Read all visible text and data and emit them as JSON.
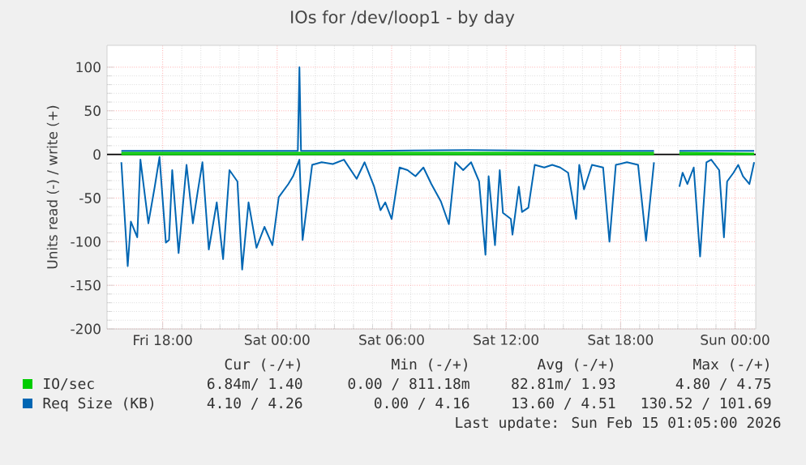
{
  "chart_data": {
    "type": "line",
    "title": "IOs for /dev/loop1 - by day",
    "ylabel": "Units read (-) / write (+)",
    "xlim": [
      "2026-02-13T15:05",
      "2026-02-15T01:05"
    ],
    "ylim": [
      -200,
      125
    ],
    "xticks": [
      {
        "value": "2026-02-13T18:00",
        "label": "Fri 18:00"
      },
      {
        "value": "2026-02-14T00:00",
        "label": "Sat 00:00"
      },
      {
        "value": "2026-02-14T06:00",
        "label": "Sat 06:00"
      },
      {
        "value": "2026-02-14T12:00",
        "label": "Sat 12:00"
      },
      {
        "value": "2026-02-14T18:00",
        "label": "Sat 18:00"
      },
      {
        "value": "2026-02-15T00:00",
        "label": "Sun 00:00"
      }
    ],
    "yticks": [
      -200,
      -150,
      -100,
      -50,
      0,
      50,
      100
    ],
    "grid": true,
    "legend": "bottom",
    "ref_lines": [
      {
        "axis": "y",
        "value": 0,
        "color": "#000000"
      }
    ],
    "series": [
      {
        "color": "#00cc00",
        "x": [
          "2026-02-13T15:50",
          "2026-02-14T00:00",
          "2026-02-14T10:00",
          "2026-02-14T19:45",
          "2026-02-14T20:20",
          "2026-02-14T21:05",
          "2026-02-15T01:00"
        ],
        "values": [
          0,
          0,
          0,
          0,
          null,
          0,
          0
        ]
      },
      {
        "name": "IO/sec",
        "color": "#00cc00",
        "x": [
          "2026-02-13T15:50",
          "2026-02-14T00:00",
          "2026-02-14T10:00",
          "2026-02-14T19:45",
          "2026-02-14T20:20",
          "2026-02-14T21:05",
          "2026-02-15T01:00"
        ],
        "values": [
          2,
          2,
          2,
          2,
          null,
          2,
          1
        ]
      },
      {
        "color": "#0066b3",
        "x": [
          "2026-02-13T15:50",
          "2026-02-13T16:10",
          "2026-02-13T16:20",
          "2026-02-13T16:40",
          "2026-02-13T16:50",
          "2026-02-13T17:15",
          "2026-02-13T17:35",
          "2026-02-13T17:50",
          "2026-02-13T18:10",
          "2026-02-13T18:20",
          "2026-02-13T18:30",
          "2026-02-13T18:50",
          "2026-02-13T19:15",
          "2026-02-13T19:35",
          "2026-02-13T19:50",
          "2026-02-13T20:05",
          "2026-02-13T20:25",
          "2026-02-13T20:50",
          "2026-02-13T21:10",
          "2026-02-13T21:30",
          "2026-02-13T21:55",
          "2026-02-13T22:10",
          "2026-02-13T22:30",
          "2026-02-13T22:55",
          "2026-02-13T23:20",
          "2026-02-13T23:45",
          "2026-02-14T00:05",
          "2026-02-14T00:35",
          "2026-02-14T00:50",
          "2026-02-14T01:10",
          "2026-02-14T01:20",
          "2026-02-14T01:50",
          "2026-02-14T02:20",
          "2026-02-14T02:55",
          "2026-02-14T03:30",
          "2026-02-14T04:10",
          "2026-02-14T04:35",
          "2026-02-14T05:05",
          "2026-02-14T05:25",
          "2026-02-14T05:40",
          "2026-02-14T06:00",
          "2026-02-14T06:25",
          "2026-02-14T06:50",
          "2026-02-14T07:15",
          "2026-02-14T07:40",
          "2026-02-14T08:05",
          "2026-02-14T08:35",
          "2026-02-14T09:00",
          "2026-02-14T09:20",
          "2026-02-14T09:45",
          "2026-02-14T10:10",
          "2026-02-14T10:35",
          "2026-02-14T10:55",
          "2026-02-14T11:05",
          "2026-02-14T11:25",
          "2026-02-14T11:40",
          "2026-02-14T11:50",
          "2026-02-14T12:15",
          "2026-02-14T12:20",
          "2026-02-14T12:40",
          "2026-02-14T12:50",
          "2026-02-14T13:10",
          "2026-02-14T13:30",
          "2026-02-14T14:00",
          "2026-02-14T14:25",
          "2026-02-14T14:50",
          "2026-02-14T15:15",
          "2026-02-14T15:40",
          "2026-02-14T15:50",
          "2026-02-14T16:05",
          "2026-02-14T16:30",
          "2026-02-14T17:05",
          "2026-02-14T17:25",
          "2026-02-14T17:45",
          "2026-02-14T18:20",
          "2026-02-14T18:55",
          "2026-02-14T19:20",
          "2026-02-14T19:45",
          "2026-02-14T20:20",
          "2026-02-14T21:05",
          "2026-02-14T21:15",
          "2026-02-14T21:30",
          "2026-02-14T21:50",
          "2026-02-14T22:10",
          "2026-02-14T22:30",
          "2026-02-14T22:45",
          "2026-02-14T23:10",
          "2026-02-14T23:25",
          "2026-02-14T23:35",
          "2026-02-14T23:55",
          "2026-02-15T00:10",
          "2026-02-15T00:25",
          "2026-02-15T00:45",
          "2026-02-15T01:00"
        ],
        "values": [
          -9,
          -128,
          -77,
          -95,
          -6,
          -79,
          -37,
          -3,
          -101,
          -98,
          -18,
          -113,
          -12,
          -79,
          -43,
          -9,
          -109,
          -55,
          -120,
          -18,
          -31,
          -132,
          -55,
          -107,
          -83,
          -104,
          -49,
          -34,
          -25,
          -6,
          -98,
          -12,
          -9,
          -11,
          -6,
          -28,
          -9,
          -37,
          -64,
          -55,
          -74,
          -15,
          -18,
          -25,
          -15,
          -34,
          -54,
          -80,
          -9,
          -18,
          -9,
          -31,
          -115,
          -25,
          -104,
          -18,
          -67,
          -74,
          -92,
          -37,
          -66,
          -61,
          -12,
          -15,
          -12,
          -15,
          -21,
          -74,
          -12,
          -40,
          -12,
          -15,
          -100,
          -12,
          -9,
          -12,
          -99,
          -9,
          null,
          -37,
          -21,
          -34,
          -15,
          -117,
          -9,
          -6,
          -18,
          -95,
          -31,
          -21,
          -12,
          -25,
          -34,
          -9
        ]
      },
      {
        "name": "Req Size (KB)",
        "color": "#0066b3",
        "x": [
          "2026-02-13T15:50",
          "2026-02-13T20:00",
          "2026-02-14T00:00",
          "2026-02-14T01:05",
          "2026-02-14T01:10",
          "2026-02-14T01:15",
          "2026-02-14T05:00",
          "2026-02-14T10:00",
          "2026-02-14T15:00",
          "2026-02-14T19:45",
          "2026-02-14T20:20",
          "2026-02-14T21:05",
          "2026-02-15T01:00"
        ],
        "values": [
          4,
          4,
          4,
          4,
          100,
          4,
          4,
          5,
          4,
          4,
          null,
          4,
          4
        ]
      }
    ],
    "annotations": [
      "Cur (-/+)",
      "Min (-/+)",
      "Avg (-/+)",
      "Max (-/+)",
      "6.84m/ 1.40",
      "0.00 / 811.18m",
      "82.81m/ 1.93",
      "4.80 / 4.75",
      "4.10 / 4.26",
      "0.00 / 4.16",
      "13.60 / 4.51",
      "130.52 / 101.69",
      "Last update: Sun Feb 15 01:05:00 2026"
    ]
  }
}
